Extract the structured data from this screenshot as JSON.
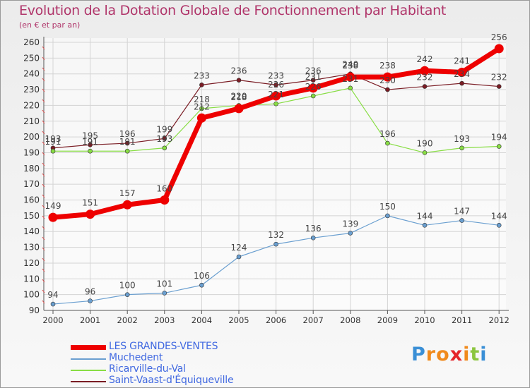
{
  "colors": {
    "title": "#b0356a",
    "axis": "#555555",
    "grid": "#d4d4d4",
    "legend_text": "#4169e1"
  },
  "chart_data": {
    "type": "line",
    "title": "Evolution de la Dotation Globale de Fonctionnement par Habitant",
    "subtitle": "(en € et par an)",
    "x": [
      "2000",
      "2001",
      "2002",
      "2003",
      "2004",
      "2005",
      "2006",
      "2007",
      "2008",
      "2009",
      "2010",
      "2011",
      "2012"
    ],
    "yticks": [
      90,
      100,
      110,
      120,
      130,
      140,
      150,
      160,
      170,
      180,
      190,
      200,
      210,
      220,
      230,
      240,
      250,
      260
    ],
    "ylim": [
      90,
      260
    ],
    "grid": true,
    "series": [
      {
        "name": "Saint-Vaast-d'Équiqueville",
        "color": "#7a1c24",
        "width": 1.2,
        "radius": 3,
        "values": [
          193,
          195,
          196,
          199,
          233,
          236,
          233,
          236,
          240,
          230,
          232,
          234,
          232
        ],
        "labels": [
          "193",
          "195",
          "196",
          "199",
          "233",
          "236",
          "233",
          "236",
          "240",
          "230",
          "232",
          "234",
          "232"
        ]
      },
      {
        "name": "Ricarville-du-Val",
        "color": "#88dd44",
        "width": 1.2,
        "radius": 3,
        "values": [
          191,
          191,
          191,
          193,
          218,
          220,
          221,
          226,
          231,
          196,
          190,
          193,
          194
        ],
        "labels": [
          "191",
          "191",
          "191",
          "193",
          "218",
          "220",
          "221",
          "226",
          "231",
          "196",
          "190",
          "193",
          "194"
        ]
      },
      {
        "name": "Muchedent",
        "color": "#6a9fd0",
        "width": 1.2,
        "radius": 3,
        "values": [
          94,
          96,
          100,
          101,
          106,
          124,
          132,
          136,
          139,
          150,
          144,
          147,
          144
        ],
        "labels": [
          "94",
          "96",
          "100",
          "101",
          "106",
          "124",
          "132",
          "136",
          "139",
          "150",
          "144",
          "147",
          "144"
        ]
      },
      {
        "name": "LES GRANDES-VENTES",
        "color": "#ee0000",
        "width": 7,
        "radius": 6.5,
        "values": [
          149,
          151,
          157,
          160,
          212,
          218,
          226,
          231,
          238,
          238,
          242,
          241,
          256
        ],
        "labels": [
          "149",
          "151",
          "157",
          "160",
          "212",
          "218",
          "226",
          "231",
          "238",
          "238",
          "242",
          "241",
          "256"
        ]
      }
    ],
    "legend": [
      {
        "label": "LES GRANDES-VENTES",
        "color": "#ee0000",
        "thick": true
      },
      {
        "label": "Muchedent",
        "color": "#6a9fd0",
        "thick": false
      },
      {
        "label": "Ricarville-du-Val",
        "color": "#88dd44",
        "thick": false
      },
      {
        "label": "Saint-Vaast-d'Équiqueville",
        "color": "#7a1c24",
        "thick": false
      }
    ]
  },
  "logo": {
    "letters": [
      "P",
      "r",
      "o",
      "x",
      "i",
      "t",
      "i"
    ],
    "colors": [
      "#3a8fd6",
      "#f08a1c",
      "#f08a1c",
      "#e5242a",
      "#f08a1c",
      "#8cc63f",
      "#3a8fd6"
    ]
  }
}
